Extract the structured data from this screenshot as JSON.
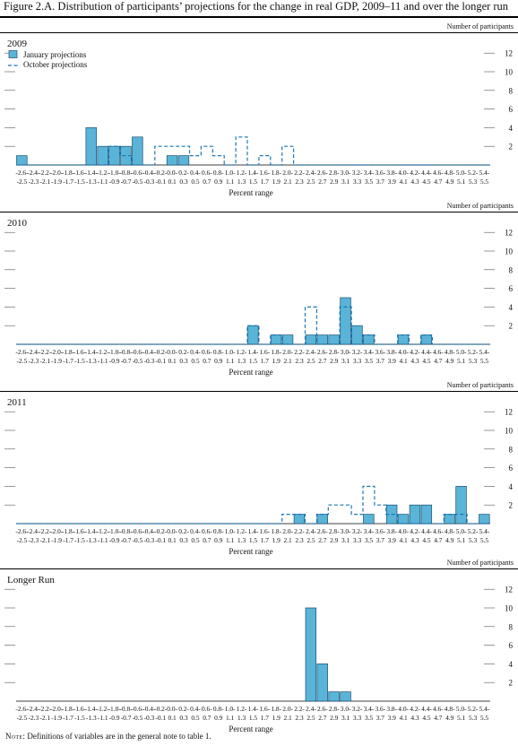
{
  "figure_title": "Figure 2.A. Distribution of participants’ projections for the change in real GDP, 2009–11 and over the longer run",
  "note": {
    "label": "Note:",
    "text": "Definitions of variables are in the general note to table 1."
  },
  "legend": {
    "january": "January projections",
    "october": "October projections"
  },
  "colors": {
    "bar_fill": "#5ab4d8",
    "bar_stroke": "#1a4f72",
    "dashed": "#1a78b4",
    "grid": "#555555"
  },
  "chart_data": [
    {
      "type": "bar",
      "title": "2009",
      "ylabel": "Number of participants",
      "xlabel": "Percent range",
      "ylim": [
        0,
        12
      ],
      "yticks": [
        2,
        4,
        6,
        8,
        10,
        12
      ],
      "categories": [
        "-2.6--2.5",
        "-2.4--2.3",
        "-2.2--2.1",
        "-2.0--1.9",
        "-1.8--1.7",
        "-1.6--1.5",
        "-1.4--1.3",
        "-1.2--1.1",
        "-1.0--0.9",
        "-0.8--0.7",
        "-0.6--0.5",
        "-0.4--0.3",
        "-0.2--0.1",
        "0.0-0.1",
        "0.2-0.3",
        "0.4-0.5",
        "0.6-0.7",
        "0.8-0.9",
        "1.0-1.1",
        "1.2-1.3",
        "1.4-1.5",
        "1.6-1.7",
        "1.8-1.9",
        "2.0-2.1",
        "2.2-2.3",
        "2.4-2.5",
        "2.6-2.7",
        "2.8-2.9",
        "3.0-3.1",
        "3.2-3.3",
        "3.4-3.5",
        "3.6-3.7",
        "3.8-3.9",
        "4.0-4.1",
        "4.2-4.3",
        "4.4-4.5",
        "4.6-4.7",
        "4.8-4.9",
        "5.0-5.1",
        "5.2-5.3",
        "5.4-5.5"
      ],
      "tick_top": [
        "-2.6-",
        "-2.4-",
        "-2.2-",
        "-2.0-",
        "-1.8-",
        "-1.6-",
        "-1.4-",
        "-1.2-",
        "-1.0-",
        "-0.8-",
        "-0.6-",
        "-0.4-",
        "-0.2-",
        "0.0-",
        "0.2-",
        "0.4-",
        "0.6-",
        "0.8-",
        "1.0-",
        "1.2-",
        "1.4-",
        "1.6-",
        "1.8-",
        "2.0-",
        "2.2-",
        "2.4-",
        "2.6-",
        "2.8-",
        "3.0-",
        "3.2-",
        "3.4-",
        "3.6-",
        "3.8-",
        "4.0-",
        "4.2-",
        "4.4-",
        "4.6-",
        "4.8-",
        "5.0-",
        "5.2-",
        "5.4-"
      ],
      "tick_bottom": [
        "-2.5",
        "-2.3",
        "-2.1",
        "-1.9",
        "-1.7",
        "-1.5",
        "-1.3",
        "-1.1",
        "-0.9",
        "-0.7",
        "-0.5",
        "-0.3",
        "-0.1",
        "0.1",
        "0.3",
        "0.5",
        "0.7",
        "0.9",
        "1.1",
        "1.3",
        "1.5",
        "1.7",
        "1.9",
        "2.1",
        "2.3",
        "2.5",
        "2.7",
        "2.9",
        "3.1",
        "3.3",
        "3.5",
        "3.7",
        "3.9",
        "4.1",
        "4.3",
        "4.5",
        "4.7",
        "4.9",
        "5.1",
        "5.3",
        "5.5"
      ],
      "series": [
        {
          "name": "January projections",
          "style": "bar",
          "values": [
            1,
            0,
            0,
            0,
            0,
            0,
            4,
            2,
            2,
            2,
            3,
            0,
            0,
            1,
            1,
            0,
            0,
            0,
            0,
            0,
            0,
            0,
            0,
            0,
            0,
            0,
            0,
            0,
            0,
            0,
            0,
            0,
            0,
            0,
            0,
            0,
            0,
            0,
            0,
            0,
            0
          ]
        },
        {
          "name": "October projections",
          "style": "dashed-step",
          "values": [
            0,
            0,
            0,
            0,
            0,
            0,
            0,
            0,
            2,
            1,
            0,
            0,
            2,
            2,
            2,
            1,
            2,
            1,
            0,
            3,
            0,
            1,
            0,
            2,
            0,
            0,
            0,
            0,
            0,
            0,
            0,
            0,
            0,
            0,
            0,
            0,
            0,
            0,
            0,
            0,
            0
          ]
        }
      ]
    },
    {
      "type": "bar",
      "title": "2010",
      "ylabel": "Number of participants",
      "xlabel": "Percent range",
      "ylim": [
        0,
        12
      ],
      "yticks": [
        2,
        4,
        6,
        8,
        10,
        12
      ],
      "categories": [
        "-2.6--2.5",
        "-2.4--2.3",
        "-2.2--2.1",
        "-2.0--1.9",
        "-1.8--1.7",
        "-1.6--1.5",
        "-1.4--1.3",
        "-1.2--1.1",
        "-1.0--0.9",
        "-0.8--0.7",
        "-0.6--0.5",
        "-0.4--0.3",
        "-0.2--0.1",
        "0.0-0.1",
        "0.2-0.3",
        "0.4-0.5",
        "0.6-0.7",
        "0.8-0.9",
        "1.0-1.1",
        "1.2-1.3",
        "1.4-1.5",
        "1.6-1.7",
        "1.8-1.9",
        "2.0-2.1",
        "2.2-2.3",
        "2.4-2.5",
        "2.6-2.7",
        "2.8-2.9",
        "3.0-3.1",
        "3.2-3.3",
        "3.4-3.5",
        "3.6-3.7",
        "3.8-3.9",
        "4.0-4.1",
        "4.2-4.3",
        "4.4-4.5",
        "4.6-4.7",
        "4.8-4.9",
        "5.0-5.1",
        "5.2-5.3",
        "5.4-5.5"
      ],
      "tick_top": [
        "-2.6-",
        "-2.4-",
        "-2.2-",
        "-2.0-",
        "-1.8-",
        "-1.6-",
        "-1.4-",
        "-1.2-",
        "-1.0-",
        "-0.8-",
        "-0.6-",
        "-0.4-",
        "-0.2-",
        "0.0-",
        "0.2-",
        "0.4-",
        "0.6-",
        "0.8-",
        "1.0-",
        "1.2-",
        "1.4-",
        "1.6-",
        "1.8-",
        "2.0-",
        "2.2-",
        "2.4-",
        "2.6-",
        "2.8-",
        "3.0-",
        "3.2-",
        "3.4-",
        "3.6-",
        "3.8-",
        "4.0-",
        "4.2-",
        "4.4-",
        "4.6-",
        "4.8-",
        "5.0-",
        "5.2-",
        "5.4-"
      ],
      "tick_bottom": [
        "-2.5",
        "-2.3",
        "-2.1",
        "-1.9",
        "-1.7",
        "-1.5",
        "-1.3",
        "-1.1",
        "-0.9",
        "-0.7",
        "-0.5",
        "-0.3",
        "-0.1",
        "0.1",
        "0.3",
        "0.5",
        "0.7",
        "0.9",
        "1.1",
        "1.3",
        "1.5",
        "1.7",
        "1.9",
        "2.1",
        "2.3",
        "2.5",
        "2.7",
        "2.9",
        "3.1",
        "3.3",
        "3.5",
        "3.7",
        "3.9",
        "4.1",
        "4.3",
        "4.5",
        "4.7",
        "4.9",
        "5.1",
        "5.3",
        "5.5"
      ],
      "series": [
        {
          "name": "January projections",
          "style": "bar",
          "values": [
            0,
            0,
            0,
            0,
            0,
            0,
            0,
            0,
            0,
            0,
            0,
            0,
            0,
            0,
            0,
            0,
            0,
            0,
            0,
            0,
            2,
            0,
            1,
            1,
            0,
            1,
            1,
            1,
            5,
            2,
            1,
            0,
            0,
            1,
            0,
            1,
            0,
            0,
            0,
            0,
            0
          ]
        },
        {
          "name": "October projections",
          "style": "dashed-step",
          "values": [
            0,
            0,
            0,
            0,
            0,
            0,
            0,
            0,
            0,
            0,
            0,
            0,
            0,
            0,
            0,
            0,
            0,
            0,
            0,
            0,
            2,
            0,
            1,
            0,
            0,
            4,
            0,
            0,
            4,
            0,
            1,
            0,
            0,
            1,
            0,
            1,
            0,
            0,
            0,
            0,
            0
          ]
        }
      ]
    },
    {
      "type": "bar",
      "title": "2011",
      "ylabel": "Number of participants",
      "xlabel": "Percent range",
      "ylim": [
        0,
        12
      ],
      "yticks": [
        2,
        4,
        6,
        8,
        10,
        12
      ],
      "categories": [
        "-2.6--2.5",
        "-2.4--2.3",
        "-2.2--2.1",
        "-2.0--1.9",
        "-1.8--1.7",
        "-1.6--1.5",
        "-1.4--1.3",
        "-1.2--1.1",
        "-1.0--0.9",
        "-0.8--0.7",
        "-0.6--0.5",
        "-0.4--0.3",
        "-0.2--0.1",
        "0.0-0.1",
        "0.2-0.3",
        "0.4-0.5",
        "0.6-0.7",
        "0.8-0.9",
        "1.0-1.1",
        "1.2-1.3",
        "1.4-1.5",
        "1.6-1.7",
        "1.8-1.9",
        "2.0-2.1",
        "2.2-2.3",
        "2.4-2.5",
        "2.6-2.7",
        "2.8-2.9",
        "3.0-3.1",
        "3.2-3.3",
        "3.4-3.5",
        "3.6-3.7",
        "3.8-3.9",
        "4.0-4.1",
        "4.2-4.3",
        "4.4-4.5",
        "4.6-4.7",
        "4.8-4.9",
        "5.0-5.1",
        "5.2-5.3",
        "5.4-5.5"
      ],
      "tick_top": [
        "-2.6-",
        "-2.4-",
        "-2.2-",
        "-2.0-",
        "-1.8-",
        "-1.6-",
        "-1.4-",
        "-1.2-",
        "-1.0-",
        "-0.8-",
        "-0.6-",
        "-0.4-",
        "-0.2-",
        "0.0-",
        "0.2-",
        "0.4-",
        "0.6-",
        "0.8-",
        "1.0-",
        "1.2-",
        "1.4-",
        "1.6-",
        "1.8-",
        "2.0-",
        "2.2-",
        "2.4-",
        "2.6-",
        "2.8-",
        "3.0-",
        "3.2-",
        "3.4-",
        "3.6-",
        "3.8-",
        "4.0-",
        "4.2-",
        "4.4-",
        "4.6-",
        "4.8-",
        "5.0-",
        "5.2-",
        "5.4-"
      ],
      "tick_bottom": [
        "-2.5",
        "-2.3",
        "-2.1",
        "-1.9",
        "-1.7",
        "-1.5",
        "-1.3",
        "-1.1",
        "-0.9",
        "-0.7",
        "-0.5",
        "-0.3",
        "-0.1",
        "0.1",
        "0.3",
        "0.5",
        "0.7",
        "0.9",
        "1.1",
        "1.3",
        "1.5",
        "1.7",
        "1.9",
        "2.1",
        "2.3",
        "2.5",
        "2.7",
        "2.9",
        "3.1",
        "3.3",
        "3.5",
        "3.7",
        "3.9",
        "4.1",
        "4.3",
        "4.5",
        "4.7",
        "4.9",
        "5.1",
        "5.3",
        "5.5"
      ],
      "series": [
        {
          "name": "January projections",
          "style": "bar",
          "values": [
            0,
            0,
            0,
            0,
            0,
            0,
            0,
            0,
            0,
            0,
            0,
            0,
            0,
            0,
            0,
            0,
            0,
            0,
            0,
            0,
            0,
            0,
            0,
            0,
            1,
            0,
            1,
            0,
            0,
            0,
            1,
            0,
            2,
            1,
            2,
            2,
            0,
            1,
            4,
            0,
            1
          ]
        },
        {
          "name": "October projections",
          "style": "dashed-step",
          "values": [
            0,
            0,
            0,
            0,
            0,
            0,
            0,
            0,
            0,
            0,
            0,
            0,
            0,
            0,
            0,
            0,
            0,
            0,
            0,
            0,
            0,
            0,
            0,
            1,
            1,
            0,
            1,
            2,
            2,
            1,
            4,
            2,
            1,
            0,
            0,
            0,
            0,
            1,
            1,
            0,
            0
          ]
        }
      ]
    },
    {
      "type": "bar",
      "title": "Longer Run",
      "ylabel": "Number of participants",
      "xlabel": "Percent range",
      "ylim": [
        0,
        12
      ],
      "yticks": [
        2,
        4,
        6,
        8,
        10,
        12
      ],
      "categories": [
        "-2.6--2.5",
        "-2.4--2.3",
        "-2.2--2.1",
        "-2.0--1.9",
        "-1.8--1.7",
        "-1.6--1.5",
        "-1.4--1.3",
        "-1.2--1.1",
        "-1.0--0.9",
        "-0.8--0.7",
        "-0.6--0.5",
        "-0.4--0.3",
        "-0.2--0.1",
        "0.0-0.1",
        "0.2-0.3",
        "0.4-0.5",
        "0.6-0.7",
        "0.8-0.9",
        "1.0-1.1",
        "1.2-1.3",
        "1.4-1.5",
        "1.6-1.7",
        "1.8-1.9",
        "2.0-2.1",
        "2.2-2.3",
        "2.4-2.5",
        "2.6-2.7",
        "2.8-2.9",
        "3.0-3.1",
        "3.2-3.3",
        "3.4-3.5",
        "3.6-3.7",
        "3.8-3.9",
        "4.0-4.1",
        "4.2-4.3",
        "4.4-4.5",
        "4.6-4.7",
        "4.8-4.9",
        "5.0-5.1",
        "5.2-5.3",
        "5.4-5.5"
      ],
      "tick_top": [
        "-2.6-",
        "-2.4-",
        "-2.2-",
        "-2.0-",
        "-1.8-",
        "-1.6-",
        "-1.4-",
        "-1.2-",
        "-1.0-",
        "-0.8-",
        "-0.6-",
        "-0.4-",
        "-0.2-",
        "0.0-",
        "0.2-",
        "0.4-",
        "0.6-",
        "0.8-",
        "1.0-",
        "1.2-",
        "1.4-",
        "1.6-",
        "1.8-",
        "2.0-",
        "2.2-",
        "2.4-",
        "2.6-",
        "2.8-",
        "3.0-",
        "3.2-",
        "3.4-",
        "3.6-",
        "3.8-",
        "4.0-",
        "4.2-",
        "4.4-",
        "4.6-",
        "4.8-",
        "5.0-",
        "5.2-",
        "5.4-"
      ],
      "tick_bottom": [
        "-2.5",
        "-2.3",
        "-2.1",
        "-1.9",
        "-1.7",
        "-1.5",
        "-1.3",
        "-1.1",
        "-0.9",
        "-0.7",
        "-0.5",
        "-0.3",
        "-0.1",
        "0.1",
        "0.3",
        "0.5",
        "0.7",
        "0.9",
        "1.1",
        "1.3",
        "1.5",
        "1.7",
        "1.9",
        "2.1",
        "2.3",
        "2.5",
        "2.7",
        "2.9",
        "3.1",
        "3.3",
        "3.5",
        "3.7",
        "3.9",
        "4.1",
        "4.3",
        "4.5",
        "4.7",
        "4.9",
        "5.1",
        "5.3",
        "5.5"
      ],
      "series": [
        {
          "name": "January projections",
          "style": "bar",
          "values": [
            0,
            0,
            0,
            0,
            0,
            0,
            0,
            0,
            0,
            0,
            0,
            0,
            0,
            0,
            0,
            0,
            0,
            0,
            0,
            0,
            0,
            0,
            0,
            0,
            0,
            10,
            4,
            1,
            1,
            0,
            0,
            0,
            0,
            0,
            0,
            0,
            0,
            0,
            0,
            0,
            0
          ]
        }
      ]
    }
  ]
}
